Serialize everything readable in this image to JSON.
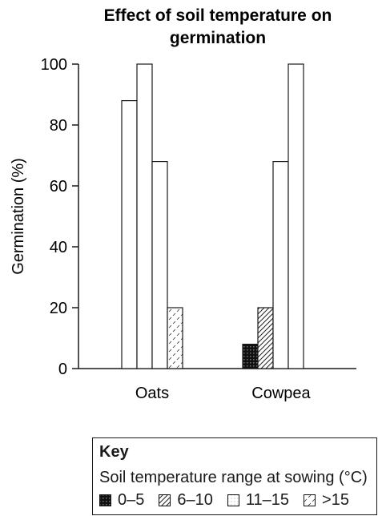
{
  "chart_data": {
    "type": "bar",
    "title": "Effect of soil temperature on germination",
    "ylabel": "Germination (%)",
    "xlabel": "",
    "ylim": [
      0,
      100
    ],
    "yticks": [
      0,
      20,
      40,
      60,
      80,
      100
    ],
    "categories": [
      "Oats",
      "Cowpea"
    ],
    "series": [
      {
        "name": "0–5",
        "pattern": "dark-grid",
        "values": [
          0,
          8
        ]
      },
      {
        "name": "6–10",
        "pattern": "diagonal-lines",
        "values": [
          88,
          20
        ]
      },
      {
        "name": "11–15",
        "pattern": "dots",
        "values": [
          100,
          68
        ]
      },
      {
        "name": ">15",
        "pattern": "dashes",
        "values": [
          68,
          100
        ]
      }
    ],
    "extra_oats_bar": {
      "value": 20
    }
  },
  "legend": {
    "title": "Key",
    "subtitle": "Soil temperature range at sowing (°C)",
    "items": [
      "0–5",
      "6–10",
      "11–15",
      ">15"
    ]
  }
}
